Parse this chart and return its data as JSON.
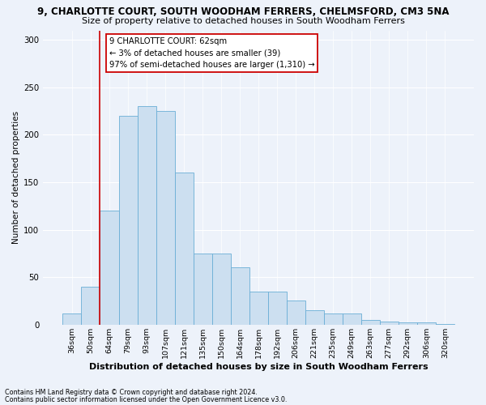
{
  "title1": "9, CHARLOTTE COURT, SOUTH WOODHAM FERRERS, CHELMSFORD, CM3 5NA",
  "title2": "Size of property relative to detached houses in South Woodham Ferrers",
  "xlabel": "Distribution of detached houses by size in South Woodham Ferrers",
  "ylabel": "Number of detached properties",
  "footnote1": "Contains HM Land Registry data © Crown copyright and database right 2024.",
  "footnote2": "Contains public sector information licensed under the Open Government Licence v3.0.",
  "bin_labels": [
    "36sqm",
    "50sqm",
    "64sqm",
    "79sqm",
    "93sqm",
    "107sqm",
    "121sqm",
    "135sqm",
    "150sqm",
    "164sqm",
    "178sqm",
    "192sqm",
    "206sqm",
    "221sqm",
    "235sqm",
    "249sqm",
    "263sqm",
    "277sqm",
    "292sqm",
    "306sqm",
    "320sqm"
  ],
  "bar_heights": [
    12,
    40,
    120,
    220,
    230,
    225,
    160,
    75,
    75,
    60,
    35,
    35,
    25,
    15,
    12,
    12,
    5,
    3,
    2,
    2,
    1
  ],
  "bar_color": "#ccdff0",
  "bar_edge_color": "#6aaed6",
  "vline_color": "#cc0000",
  "annotation_text": "9 CHARLOTTE COURT: 62sqm\n← 3% of detached houses are smaller (39)\n97% of semi-detached houses are larger (1,310) →",
  "annotation_box_color": "#ffffff",
  "annotation_box_edge": "#cc0000",
  "ylim": [
    0,
    310
  ],
  "yticks": [
    0,
    50,
    100,
    150,
    200,
    250,
    300
  ],
  "background_color": "#edf2fa",
  "grid_color": "#ffffff",
  "title1_fontsize": 8.5,
  "title2_fontsize": 8.0,
  "ylabel_fontsize": 7.5,
  "xlabel_fontsize": 8.0,
  "tick_fontsize": 6.8,
  "annotation_fontsize": 7.2,
  "footnote_fontsize": 5.8
}
